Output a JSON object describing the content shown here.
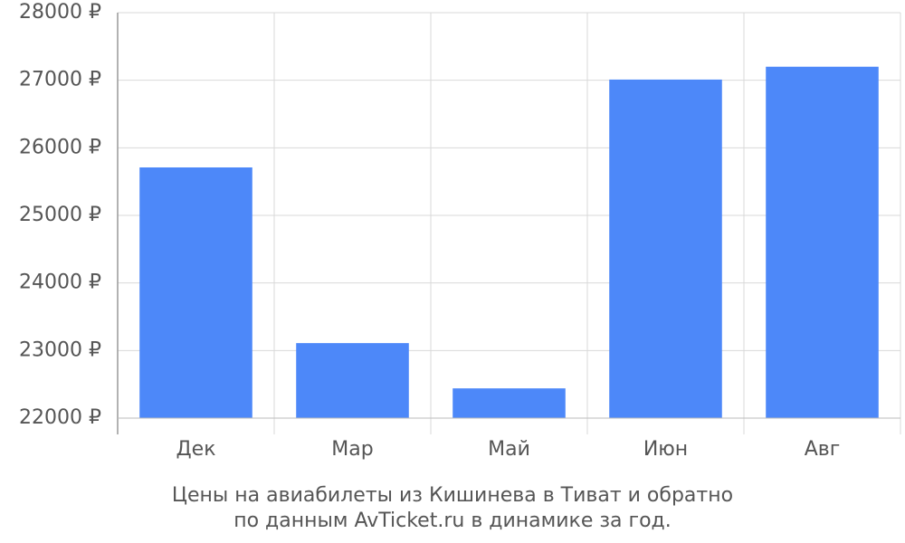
{
  "chart_data": {
    "type": "bar",
    "title": [
      "Цены на авиабилеты из Кишинева в Тиват и обратно",
      "по данным AvTicket.ru в динамике за год."
    ],
    "categories": [
      "Дек",
      "Мар",
      "Май",
      "Июн",
      "Авг"
    ],
    "values": [
      25710,
      23110,
      22440,
      27010,
      27200
    ],
    "color": "#4d88f9",
    "ylim": [
      22000,
      28000
    ],
    "yticks": [
      {
        "value": 22000,
        "label": "22000 ₽"
      },
      {
        "value": 23000,
        "label": "23000 ₽"
      },
      {
        "value": 24000,
        "label": "24000 ₽"
      },
      {
        "value": 25000,
        "label": "25000 ₽"
      },
      {
        "value": 26000,
        "label": "26000 ₽"
      },
      {
        "value": 27000,
        "label": "27000 ₽"
      },
      {
        "value": 28000,
        "label": "28000 ₽"
      }
    ],
    "grid": true
  }
}
